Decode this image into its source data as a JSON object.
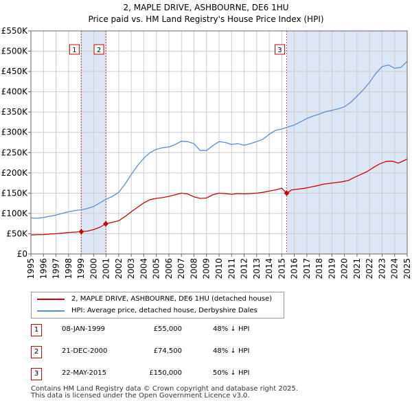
{
  "chart_data": {
    "type": "line",
    "title": "2, MAPLE DRIVE, ASHBOURNE, DE6 1HU",
    "subtitle": "Price paid vs. HM Land Registry's House Price Index (HPI)",
    "xlabel": "",
    "ylabel": "",
    "xlim": [
      1995,
      2025
    ],
    "ylim": [
      0,
      550000
    ],
    "x_ticks": [
      "1995",
      "1996",
      "1997",
      "1998",
      "1999",
      "2000",
      "2001",
      "2002",
      "2003",
      "2004",
      "2005",
      "2006",
      "2007",
      "2008",
      "2009",
      "2010",
      "2011",
      "2012",
      "2013",
      "2014",
      "2015",
      "2016",
      "2017",
      "2018",
      "2019",
      "2020",
      "2021",
      "2022",
      "2023",
      "2024",
      "2025"
    ],
    "y_ticks": [
      {
        "value": 0,
        "label": "£0"
      },
      {
        "value": 50000,
        "label": "£50K"
      },
      {
        "value": 100000,
        "label": "£100K"
      },
      {
        "value": 150000,
        "label": "£150K"
      },
      {
        "value": 200000,
        "label": "£200K"
      },
      {
        "value": 250000,
        "label": "£250K"
      },
      {
        "value": 300000,
        "label": "£300K"
      },
      {
        "value": 350000,
        "label": "£350K"
      },
      {
        "value": 400000,
        "label": "£400K"
      },
      {
        "value": 450000,
        "label": "£450K"
      },
      {
        "value": 500000,
        "label": "£500K"
      },
      {
        "value": 550000,
        "label": "£550K"
      }
    ],
    "grid": true,
    "series": [
      {
        "name": "2, MAPLE DRIVE, ASHBOURNE, DE6 1HU (detached house)",
        "color": "#cc0000",
        "x": [
          1995,
          1995.5,
          1996,
          1996.5,
          1997,
          1997.5,
          1998,
          1998.5,
          1999.02,
          1999.5,
          2000,
          2000.5,
          2000.97,
          2001.5,
          2002,
          2002.5,
          2003,
          2003.5,
          2004,
          2004.5,
          2005,
          2005.5,
          2006,
          2006.5,
          2007,
          2007.5,
          2008,
          2008.5,
          2009,
          2009.5,
          2010,
          2010.5,
          2011,
          2011.5,
          2012,
          2012.5,
          2013,
          2013.5,
          2014,
          2014.5,
          2015,
          2015.39,
          2015.8,
          2016.3,
          2016.8,
          2017.3,
          2017.8,
          2018.3,
          2018.8,
          2019.3,
          2019.8,
          2020.3,
          2020.8,
          2021.3,
          2021.8,
          2022.3,
          2022.8,
          2023.3,
          2023.8,
          2024.3,
          2024.8,
          2025
        ],
        "values": [
          47000,
          47500,
          48000,
          49000,
          50000,
          51500,
          53000,
          54000,
          55000,
          56500,
          60000,
          66000,
          74500,
          78000,
          82000,
          92000,
          104000,
          115000,
          126000,
          134000,
          137000,
          139000,
          142000,
          146000,
          150000,
          148000,
          141000,
          137000,
          138000,
          146000,
          150000,
          149000,
          147000,
          149000,
          148000,
          149000,
          150000,
          152000,
          155000,
          158000,
          162000,
          150000,
          158000,
          160000,
          162000,
          165000,
          168000,
          172000,
          174000,
          176000,
          178000,
          181000,
          189000,
          196000,
          203000,
          213000,
          222000,
          228000,
          229000,
          224000,
          231000,
          234000
        ]
      },
      {
        "name": "HPI: Average price, detached house, Derbyshire Dales",
        "color": "#5b8fd0",
        "x": [
          1995,
          1995.5,
          1996,
          1996.5,
          1997,
          1997.5,
          1998,
          1998.5,
          1999,
          1999.5,
          2000,
          2000.5,
          2001,
          2001.5,
          2002,
          2002.5,
          2003,
          2003.5,
          2004,
          2004.5,
          2005,
          2005.5,
          2006,
          2006.5,
          2007,
          2007.5,
          2008,
          2008.5,
          2009,
          2009.5,
          2010,
          2010.5,
          2011,
          2011.5,
          2012,
          2012.5,
          2013,
          2013.5,
          2014,
          2014.5,
          2015,
          2015.5,
          2016,
          2016.5,
          2017,
          2017.5,
          2018,
          2018.5,
          2019,
          2019.5,
          2020,
          2020.5,
          2021,
          2021.5,
          2022,
          2022.5,
          2023,
          2023.5,
          2024,
          2024.5,
          2025
        ],
        "values": [
          89000,
          88000,
          90000,
          93000,
          96000,
          100000,
          104000,
          107000,
          109000,
          112000,
          117000,
          126000,
          135000,
          142000,
          152000,
          172000,
          196000,
          218000,
          236000,
          250000,
          258000,
          262000,
          264000,
          270000,
          278000,
          277000,
          272000,
          255000,
          255000,
          267000,
          277000,
          275000,
          270000,
          272000,
          268000,
          272000,
          277000,
          283000,
          295000,
          305000,
          308000,
          313000,
          318000,
          326000,
          334000,
          340000,
          345000,
          351000,
          354000,
          358000,
          363000,
          374000,
          389000,
          405000,
          423000,
          445000,
          462000,
          466000,
          458000,
          460000,
          475000
        ]
      }
    ],
    "sales": [
      {
        "label": "1",
        "x": 1999.02,
        "price": 55000
      },
      {
        "label": "2",
        "x": 2000.97,
        "price": 74500
      },
      {
        "label": "3",
        "x": 2015.39,
        "price": 150000
      }
    ]
  },
  "legend": {
    "items": [
      {
        "label": "2, MAPLE DRIVE, ASHBOURNE, DE6 1HU (detached house)",
        "color": "#cc0000"
      },
      {
        "label": "HPI: Average price, detached house, Derbyshire Dales",
        "color": "#5b8fd0"
      }
    ]
  },
  "sales_table": [
    {
      "num": "1",
      "date": "08-JAN-1999",
      "price": "£55,000",
      "hpi": "48% ↓ HPI"
    },
    {
      "num": "2",
      "date": "21-DEC-2000",
      "price": "£74,500",
      "hpi": "48% ↓ HPI"
    },
    {
      "num": "3",
      "date": "22-MAY-2015",
      "price": "£150,000",
      "hpi": "50% ↓ HPI"
    }
  ],
  "footer": {
    "line1": "Contains HM Land Registry data © Crown copyright and database right 2025.",
    "line2": "This data is licensed under the Open Government Licence v3.0."
  },
  "colors": {
    "red": "#cc0000",
    "blue": "#5b8fd0",
    "shade": "#dde6f5",
    "grid": "#cccccc",
    "plot_bg": "#ffffff"
  }
}
